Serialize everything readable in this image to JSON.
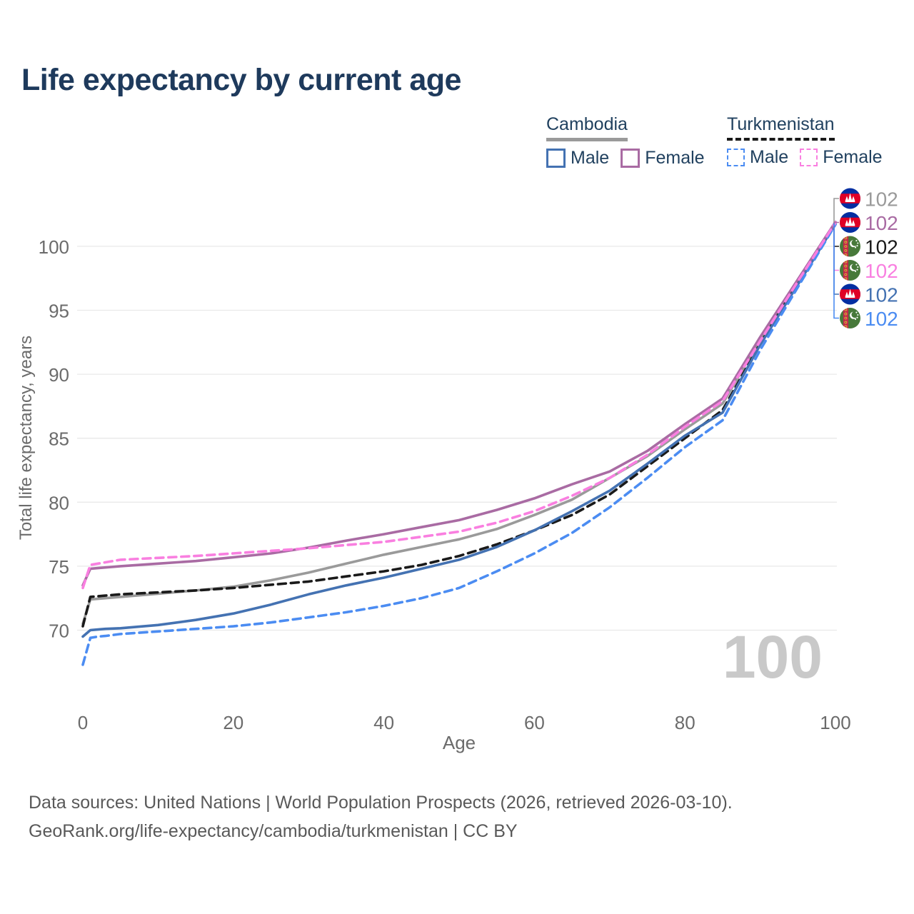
{
  "page": {
    "title": "Life expectancy by current age",
    "watermark_age": "100",
    "footer_line1": "Data sources: United Nations | World Population Prospects (2026, retrieved 2026-03-10).",
    "footer_line2": "GeoRank.org/life-expectancy/cambodia/turkmenistan | CC BY"
  },
  "colors": {
    "title_text": "#1e3a5c",
    "legend_text": "#21415f",
    "axis_text": "#6b6b6b",
    "grid_line": "#e9e9e9",
    "watermark": "#c9c9c9",
    "footer_text": "#595959"
  },
  "legend": {
    "groups": [
      {
        "name": "Cambodia",
        "line_style": "solid",
        "line_color": "#9a9a9a",
        "items": [
          {
            "label": "Male",
            "swatch_color": "#4472b2",
            "swatch_style": "solid"
          },
          {
            "label": "Female",
            "swatch_color": "#a96ba3",
            "swatch_style": "solid"
          }
        ]
      },
      {
        "name": "Turkmenistan",
        "line_style": "dashed",
        "line_color": "#1a1a1a",
        "items": [
          {
            "label": "Male",
            "swatch_color": "#4b8cf2",
            "swatch_style": "dashed"
          },
          {
            "label": "Female",
            "swatch_color": "#f97fe0",
            "swatch_style": "dashed"
          }
        ]
      }
    ]
  },
  "chart_data": {
    "type": "line",
    "title": "Life expectancy by current age",
    "xlabel": "Age",
    "ylabel": "Total life expectancy, years",
    "xlim": [
      0,
      100
    ],
    "ylim": [
      67,
      103
    ],
    "x_ticks": [
      0,
      20,
      40,
      60,
      80,
      100
    ],
    "y_ticks": [
      70,
      75,
      80,
      85,
      90,
      95,
      100
    ],
    "grid": true,
    "legend_position": "top-right",
    "hovered_age": 100,
    "x": [
      0,
      1,
      2,
      3,
      5,
      10,
      15,
      20,
      25,
      30,
      35,
      40,
      45,
      50,
      55,
      60,
      65,
      70,
      75,
      80,
      85,
      90,
      95,
      100
    ],
    "series": [
      {
        "name": "Cambodia — Both sexes",
        "country": "Cambodia",
        "sex": "both",
        "color": "#9a9a9a",
        "dashed": false,
        "flag": "cambodia",
        "end_label": "102",
        "values": [
          70.5,
          72.4,
          72.45,
          72.5,
          72.6,
          72.85,
          73.1,
          73.4,
          73.9,
          74.5,
          75.2,
          75.9,
          76.5,
          77.1,
          77.9,
          79.0,
          80.2,
          81.9,
          83.6,
          85.7,
          87.7,
          92.7,
          97.2,
          101.85
        ]
      },
      {
        "name": "Cambodia — Female",
        "country": "Cambodia",
        "sex": "female",
        "color": "#a96ba3",
        "dashed": false,
        "flag": "cambodia",
        "end_label": "102",
        "values": [
          73.5,
          74.8,
          74.85,
          74.9,
          75.0,
          75.2,
          75.4,
          75.7,
          76.0,
          76.45,
          77.0,
          77.5,
          78.05,
          78.6,
          79.4,
          80.3,
          81.4,
          82.4,
          84.0,
          86.1,
          88.1,
          92.9,
          97.4,
          101.9
        ]
      },
      {
        "name": "Turkmenistan — Both sexes",
        "country": "Turkmenistan",
        "sex": "both",
        "color": "#1a1a1a",
        "dashed": true,
        "flag": "turkmenistan",
        "end_label": "102",
        "values": [
          70.3,
          72.6,
          72.65,
          72.7,
          72.8,
          72.95,
          73.1,
          73.3,
          73.55,
          73.8,
          74.2,
          74.6,
          75.1,
          75.8,
          76.7,
          77.8,
          79.0,
          80.6,
          82.8,
          85.0,
          87.2,
          92.4,
          97.1,
          101.8
        ]
      },
      {
        "name": "Turkmenistan — Female",
        "country": "Turkmenistan",
        "sex": "female",
        "color": "#f97fe0",
        "dashed": true,
        "flag": "turkmenistan",
        "end_label": "102",
        "values": [
          73.3,
          75.1,
          75.2,
          75.3,
          75.5,
          75.65,
          75.8,
          76.0,
          76.2,
          76.4,
          76.65,
          76.9,
          77.3,
          77.7,
          78.4,
          79.3,
          80.5,
          81.9,
          83.7,
          85.9,
          87.9,
          92.6,
          97.25,
          101.85
        ]
      },
      {
        "name": "Cambodia — Male",
        "country": "Cambodia",
        "sex": "male",
        "color": "#4472b2",
        "dashed": false,
        "flag": "cambodia",
        "end_label": "102",
        "values": [
          69.5,
          70.0,
          70.05,
          70.1,
          70.15,
          70.4,
          70.8,
          71.3,
          72.0,
          72.8,
          73.5,
          74.1,
          74.8,
          75.5,
          76.5,
          77.8,
          79.3,
          80.9,
          83.0,
          85.2,
          87.0,
          92.3,
          97.0,
          101.75
        ]
      },
      {
        "name": "Turkmenistan — Male",
        "country": "Turkmenistan",
        "sex": "male",
        "color": "#4b8cf2",
        "dashed": true,
        "flag": "turkmenistan",
        "end_label": "102",
        "values": [
          67.3,
          69.4,
          69.5,
          69.55,
          69.7,
          69.9,
          70.1,
          70.3,
          70.6,
          71.0,
          71.4,
          71.9,
          72.5,
          73.3,
          74.6,
          76.0,
          77.6,
          79.6,
          81.9,
          84.3,
          86.4,
          91.9,
          96.8,
          101.7
        ]
      }
    ]
  }
}
